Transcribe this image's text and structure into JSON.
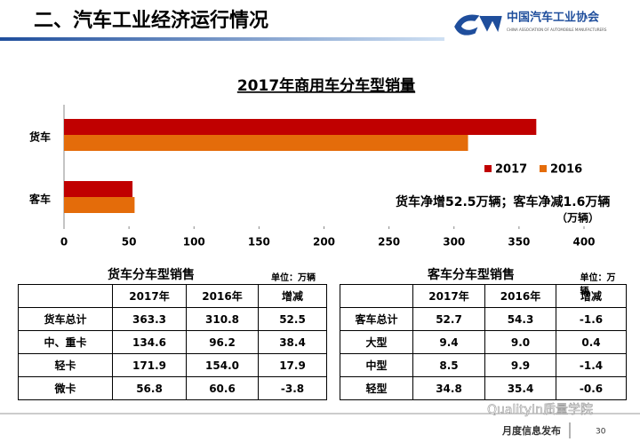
{
  "header": {
    "title": "二、汽车工业经济运行情况",
    "logo_text": "中国汽车工业协会",
    "logo_subtext": "CHINA ASSOCIATION OF AUTOMOBILE MANUFACTURERS"
  },
  "chart_data": {
    "type": "hbar",
    "title": "2017年商用车分车型销量",
    "categories": [
      "货车",
      "客车"
    ],
    "series": [
      {
        "name": "2017",
        "color": "#c00000",
        "values": [
          363.3,
          52.7
        ]
      },
      {
        "name": "2016",
        "color": "#e46c0a",
        "values": [
          310.8,
          54.3
        ]
      }
    ],
    "xlim": [
      0,
      400
    ],
    "xticks": [
      0,
      50,
      100,
      150,
      200,
      250,
      300,
      350,
      400
    ],
    "xlabel": "（万辆）",
    "annotation": "货车净增52.5万辆；客车净减1.6万辆",
    "legend": "right"
  },
  "tables": [
    {
      "caption": "货车分车型销售",
      "unit": "单位：万辆",
      "columns": [
        "2017年",
        "2016年",
        "增减"
      ],
      "rows": [
        [
          "货车总计",
          "363.3",
          "310.8",
          "52.5"
        ],
        [
          "中、重卡",
          "134.6",
          "96.2",
          "38.4"
        ],
        [
          "轻卡",
          "171.9",
          "154.0",
          "17.9"
        ],
        [
          "微卡",
          "56.8",
          "60.6",
          "-3.8"
        ]
      ]
    },
    {
      "caption": "客车分车型销售",
      "unit": "单位：万辆",
      "columns": [
        "2017年",
        "2016年",
        "增减"
      ],
      "rows": [
        [
          "客车总计",
          "52.7",
          "54.3",
          "-1.6"
        ],
        [
          "大型",
          "9.4",
          "9.0",
          "0.4"
        ],
        [
          "中型",
          "8.5",
          "9.9",
          "-1.4"
        ],
        [
          "轻型",
          "34.8",
          "35.4",
          "-0.6"
        ]
      ]
    }
  ],
  "footer": {
    "watermark": "QualityIn质量学院",
    "text": "月度信息发布",
    "page": "30"
  }
}
